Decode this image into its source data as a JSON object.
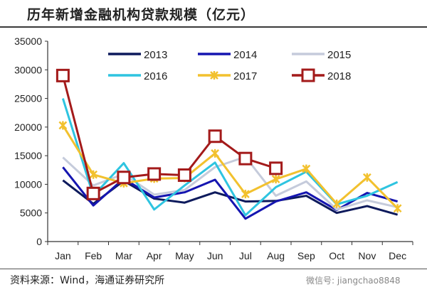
{
  "chart_data": {
    "type": "line",
    "title": "历年新增金融机构贷款规模（亿元）",
    "source": "资料来源：Wind，海通证券研究所",
    "watermark": "微信号: jiangchao8848",
    "xlabel": "",
    "ylabel": "",
    "ylim": [
      0,
      35000
    ],
    "yticks": [
      0,
      5000,
      10000,
      15000,
      20000,
      25000,
      30000,
      35000
    ],
    "categories": [
      "Jan",
      "Feb",
      "Mar",
      "Apr",
      "May",
      "Jun",
      "Jul",
      "Aug",
      "Sep",
      "Oct",
      "Nov",
      "Dec"
    ],
    "legend_position": "top",
    "series": [
      {
        "name": "2013",
        "color": "#0d1a5c",
        "marker": "none",
        "values": [
          10700,
          6600,
          10600,
          7500,
          6800,
          8600,
          7000,
          7100,
          8000,
          5000,
          6200,
          4700
        ]
      },
      {
        "name": "2014",
        "color": "#1515b0",
        "marker": "none",
        "values": [
          13000,
          6300,
          11000,
          7700,
          8600,
          10800,
          4000,
          7000,
          8600,
          5500,
          8500,
          7000
        ]
      },
      {
        "name": "2015",
        "color": "#c5cbdb",
        "marker": "none",
        "values": [
          14700,
          9800,
          11800,
          8200,
          9000,
          13000,
          14800,
          8000,
          10500,
          5600,
          7200,
          6000
        ]
      },
      {
        "name": "2016",
        "color": "#2ec4e0",
        "marker": "none",
        "values": [
          25000,
          8000,
          13700,
          5600,
          9800,
          13800,
          4600,
          9500,
          12200,
          6500,
          8000,
          10400
        ]
      },
      {
        "name": "2017",
        "color": "#f2c12e",
        "marker": "star",
        "values": [
          20300,
          11700,
          10200,
          11000,
          11100,
          15400,
          8300,
          10900,
          12700,
          6600,
          11200,
          5800
        ]
      },
      {
        "name": "2018",
        "color": "#a31a1a",
        "marker": "square",
        "values": [
          29000,
          8400,
          11200,
          11800,
          11600,
          18400,
          14500,
          12800,
          null,
          null,
          null,
          null
        ]
      }
    ]
  }
}
